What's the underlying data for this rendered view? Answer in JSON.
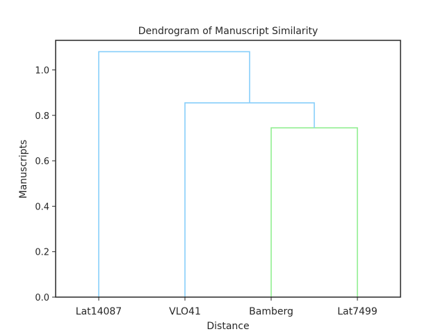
{
  "chart_data": {
    "type": "dendrogram",
    "title": "Dendrogram of Manuscript Similarity",
    "xlabel": "Distance",
    "ylabel": "Manuscripts",
    "ylim": [
      0,
      1.13
    ],
    "yticks": [
      0.0,
      0.2,
      0.4,
      0.6,
      0.8,
      1.0
    ],
    "ytick_labels": [
      "0.0",
      "0.2",
      "0.4",
      "0.6",
      "0.8",
      "1.0"
    ],
    "leaves": [
      "Lat14087",
      "VLO41",
      "Bamberg",
      "Lat7499"
    ],
    "links": [
      {
        "left": "Bamberg",
        "right": "Lat7499",
        "height": 0.745,
        "color": "#90ee90"
      },
      {
        "left": "VLO41",
        "right": "Bamberg+Lat7499",
        "height": 0.855,
        "color": "#87cefa"
      },
      {
        "left": "Lat14087",
        "right": "VLO41+Bamberg+Lat7499",
        "height": 1.08,
        "color": "#87cefa"
      }
    ]
  }
}
